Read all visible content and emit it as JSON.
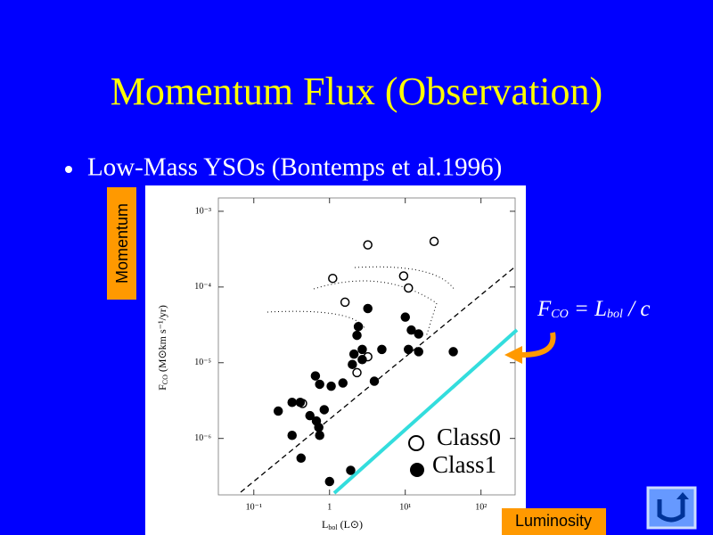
{
  "slide": {
    "title": "Momentum Flux (Observation)",
    "bullet": "Low-Mass YSOs (Bontemps et al.1996)",
    "side_label": "Momentum",
    "bottom_label": "Luminosity",
    "equation": {
      "f": "F",
      "f_sub": "CO",
      "mid": " = L",
      "l_sub": "bol",
      "end": " / c"
    }
  },
  "chart_data": {
    "type": "scatter",
    "xlog": true,
    "ylog": true,
    "x_label": {
      "main": "L",
      "sub": "bol",
      "rest": " (L⊙)"
    },
    "y_label": {
      "main": "F",
      "sub": "CO",
      "rest": " (M⊙km s⁻¹/yr)"
    },
    "xlim": [
      0.034,
      282
    ],
    "ylim": [
      1.8e-07,
      0.0015
    ],
    "xticks": [
      {
        "value": 0.1,
        "label": "10⁻¹"
      },
      1,
      {
        "value": 10,
        "label": "10¹"
      },
      {
        "value": 100,
        "label": "10²"
      }
    ],
    "yticks": [
      {
        "value": 1e-06,
        "label": "10⁻⁶"
      },
      {
        "value": 1e-05,
        "label": "10⁻⁵"
      },
      {
        "value": 0.0001,
        "label": "10⁻⁴"
      },
      {
        "value": 0.001,
        "label": "10⁻³"
      }
    ],
    "series": [
      {
        "name": "Class0",
        "marker": "open",
        "color": "#000000",
        "x": [
          3.2,
          24,
          1.1,
          9.5,
          11,
          1.6,
          0.44,
          3.2,
          2.3
        ],
        "y": [
          0.00036,
          0.0004,
          0.00013,
          0.00014,
          9.7e-05,
          6.3e-05,
          2.9e-06,
          1.2e-05,
          7.4e-06
        ]
      },
      {
        "name": "Class1",
        "marker": "filled",
        "color": "#000000",
        "x": [
          10,
          12,
          15,
          3.2,
          2.4,
          2.3,
          2.7,
          2.1,
          2.7,
          4.9,
          2.0,
          3.9,
          1.5,
          0.74,
          0.65,
          1.05,
          0.85,
          0.41,
          0.55,
          0.67,
          0.72,
          0.74,
          0.21,
          0.32,
          0.32,
          0.42,
          1.0,
          1.9,
          11,
          15,
          43
        ],
        "y": [
          4e-05,
          2.7e-05,
          2.4e-05,
          5.2e-05,
          3e-05,
          2.3e-05,
          1.5e-05,
          1.3e-05,
          1.1e-05,
          1.5e-05,
          9.5e-06,
          5.7e-06,
          5.4e-06,
          5.2e-06,
          6.7e-06,
          4.9e-06,
          2.4e-06,
          3e-06,
          2e-06,
          1.7e-06,
          1.4e-06,
          1.1e-06,
          2.3e-06,
          3e-06,
          1.1e-06,
          5.5e-07,
          2.7e-07,
          3.8e-07,
          1.5e-05,
          1.4e-05,
          1.4e-05
        ]
      }
    ]
  }
}
